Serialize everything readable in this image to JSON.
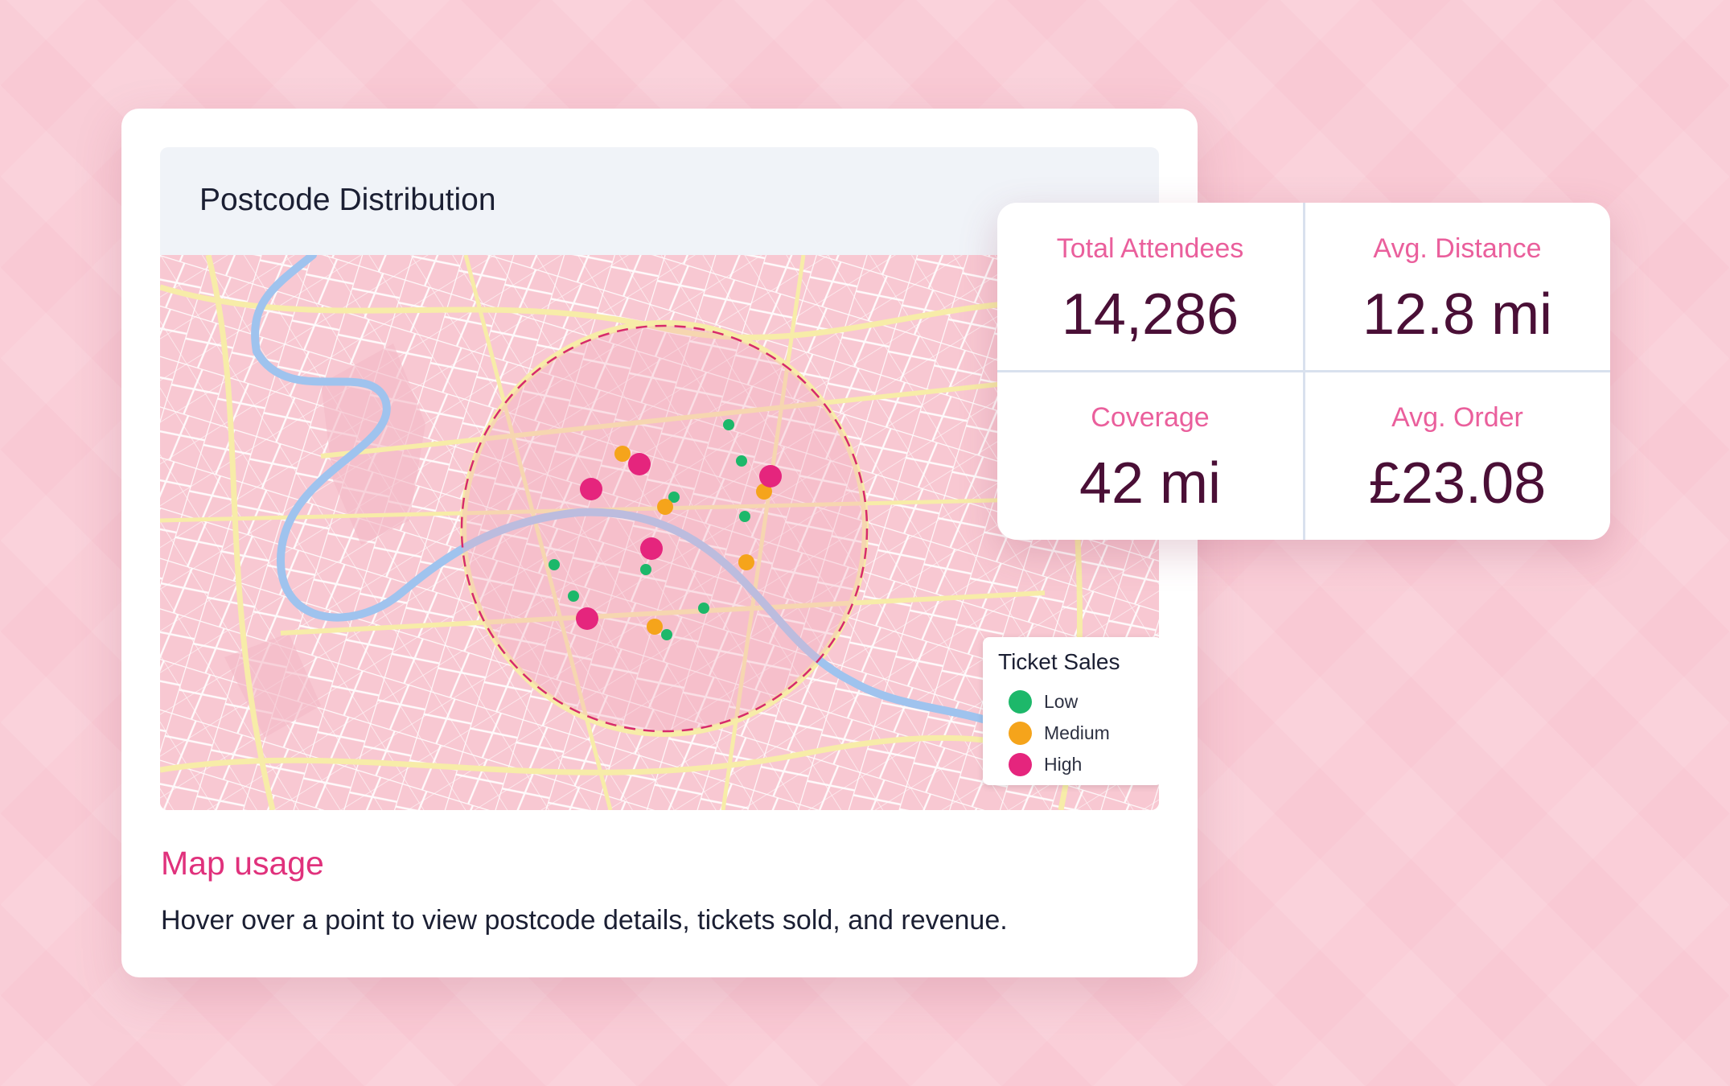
{
  "card": {
    "title": "Postcode Distribution",
    "usage_title": "Map usage",
    "usage_text": "Hover over a point to view postcode details, tickets sold, and revenue."
  },
  "legend": {
    "title": "Ticket Sales",
    "items": [
      {
        "label": "Low",
        "color": "#1db86a"
      },
      {
        "label": "Medium",
        "color": "#f5a41b"
      },
      {
        "label": "High",
        "color": "#e5257d"
      }
    ]
  },
  "stats": [
    {
      "label": "Total Attendees",
      "value": "14,286"
    },
    {
      "label": "Avg. Distance",
      "value": "12.8 mi"
    },
    {
      "label": "Coverage",
      "value": "42 mi"
    },
    {
      "label": "Avg. Order",
      "value": "£23.08"
    }
  ],
  "colors": {
    "accent": "#e0317c",
    "low": "#1db86a",
    "medium": "#f5a41b",
    "high": "#e5257d",
    "river": "#9fc3ee",
    "major_road": "#f7eca8"
  }
}
